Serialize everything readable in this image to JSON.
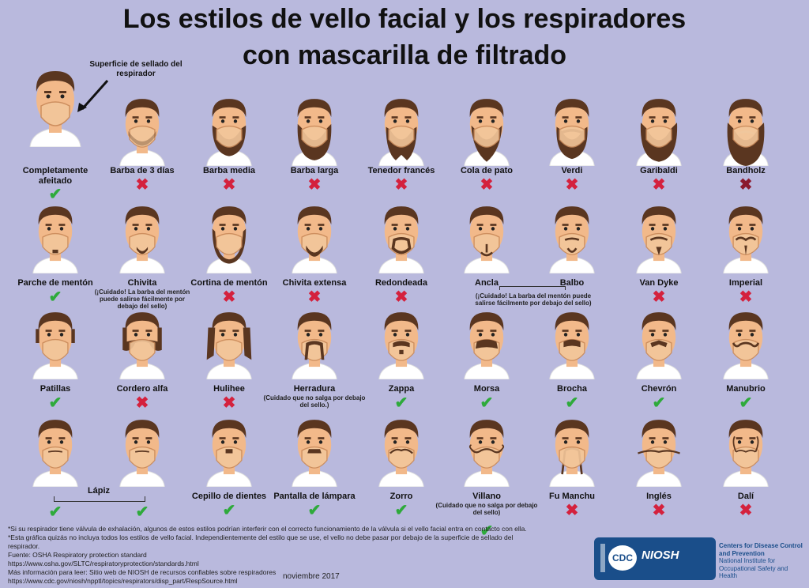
{
  "title_line1": "Los estilos de vello facial y los respiradores",
  "title_line2": "con mascarilla de filtrado",
  "callout": "Superficie de sellado del respirador",
  "rows": [
    [
      {
        "label": "Completamente afeitado",
        "ok": true,
        "style": "none"
      },
      {
        "label": "Barba de 3 días",
        "ok": false,
        "style": "stubble"
      },
      {
        "label": "Barba media",
        "ok": false,
        "style": "medium"
      },
      {
        "label": "Barba larga",
        "ok": false,
        "style": "long"
      },
      {
        "label": "Tenedor francés",
        "ok": false,
        "style": "fork"
      },
      {
        "label": "Cola de pato",
        "ok": false,
        "style": "duck"
      },
      {
        "label": "Verdi",
        "ok": false,
        "style": "verdi"
      },
      {
        "label": "Garibaldi",
        "ok": false,
        "style": "garibaldi"
      },
      {
        "label": "Bandholz",
        "ok": false,
        "style": "bandholz"
      }
    ],
    [
      {
        "label": "Parche de mentón",
        "ok": true,
        "style": "chinpatch"
      },
      {
        "label": "Chivita",
        "ok": true,
        "note": "(¡Cuidado! La barba del mentón puede salirse fácilmente por debajo del sello)",
        "style": "goatee"
      },
      {
        "label": "Cortina de mentón",
        "ok": false,
        "style": "curtain"
      },
      {
        "label": "Chivita extensa",
        "ok": false,
        "style": "extgoatee"
      },
      {
        "label": "Redondeada",
        "ok": false,
        "style": "circle"
      },
      {
        "label": "Ancla",
        "ok": null,
        "style": "anchor"
      },
      {
        "label": "Balbo",
        "ok": null,
        "style": "balbo"
      },
      {
        "label": "Van Dyke",
        "ok": false,
        "style": "vandyke"
      },
      {
        "label": "Imperial",
        "ok": false,
        "style": "imperial"
      }
    ],
    [
      {
        "label": "Patillas",
        "ok": true,
        "style": "sideburns"
      },
      {
        "label": "Cordero alfa",
        "ok": false,
        "style": "mutton"
      },
      {
        "label": "Hulihee",
        "ok": false,
        "style": "hulihee"
      },
      {
        "label": "Herradura",
        "ok": null,
        "note": "(Cuidado que no salga por debajo del sello.)",
        "style": "horseshoe"
      },
      {
        "label": "Zappa",
        "ok": true,
        "style": "zappa"
      },
      {
        "label": "Morsa",
        "ok": true,
        "style": "walrus"
      },
      {
        "label": "Brocha",
        "ok": true,
        "style": "brocha"
      },
      {
        "label": "Chevrón",
        "ok": true,
        "style": "chevron"
      },
      {
        "label": "Manubrio",
        "ok": true,
        "style": "handlebar"
      }
    ],
    [
      {
        "label": "",
        "ok": true,
        "style": "pencil1"
      },
      {
        "label": "",
        "ok": true,
        "style": "pencil2"
      },
      {
        "label": "Cepillo de dientes",
        "ok": true,
        "style": "toothbrush"
      },
      {
        "label": "Pantalla de lámpara",
        "ok": true,
        "style": "lampshade"
      },
      {
        "label": "Zorro",
        "ok": true,
        "style": "zorro"
      },
      {
        "label": "Villano",
        "ok": true,
        "note": "(Cuidado que no salga por debajo del sello)",
        "style": "villain"
      },
      {
        "label": "Fu Manchu",
        "ok": false,
        "style": "fumanchu"
      },
      {
        "label": "Inglés",
        "ok": false,
        "style": "english"
      },
      {
        "label": "Dalí",
        "ok": false,
        "style": "dali"
      }
    ]
  ],
  "pencil_label": "Lápiz",
  "anchor_balbo_note": "(¡Cuidado! La barba del mentón puede salirse fácilmente por debajo del sello)",
  "footer": [
    "*Si su respirador tiene válvula de exhalación, algunos de estos estilos podrían interferir con el correcto funcionamiento de la válvula si el vello facial entra en contacto con ella.",
    "*Esta gráfica quizás no incluya todos los estilos de vello facial. Independientemente del estilo que se use, el vello no debe pasar por debajo de la superficie de sellado del",
    "respirador.",
    "Fuente: OSHA Respiratory protection standard",
    "https://www.osha.gov/SLTC/respiratoryprotection/standards.html",
    "Más información para leer: Sitio web de NIOSH de recursos confiables sobre respiradores",
    "https://www.cdc.gov/niosh/npptl/topics/respirators/disp_part/RespSource.html"
  ],
  "date": "noviembre 2017",
  "logo_cdc": "CDC",
  "logo_niosh": "NIOSH",
  "agency_line1": "Centers for Disease Control and Prevention",
  "agency_line2": "National Institute for Occupational Safety and Health",
  "colors": {
    "ok": "#2eaa3b",
    "no": "#d4213d",
    "skin": "#f2b98a",
    "hair": "#5a3620",
    "mask": "#f3c79b"
  }
}
